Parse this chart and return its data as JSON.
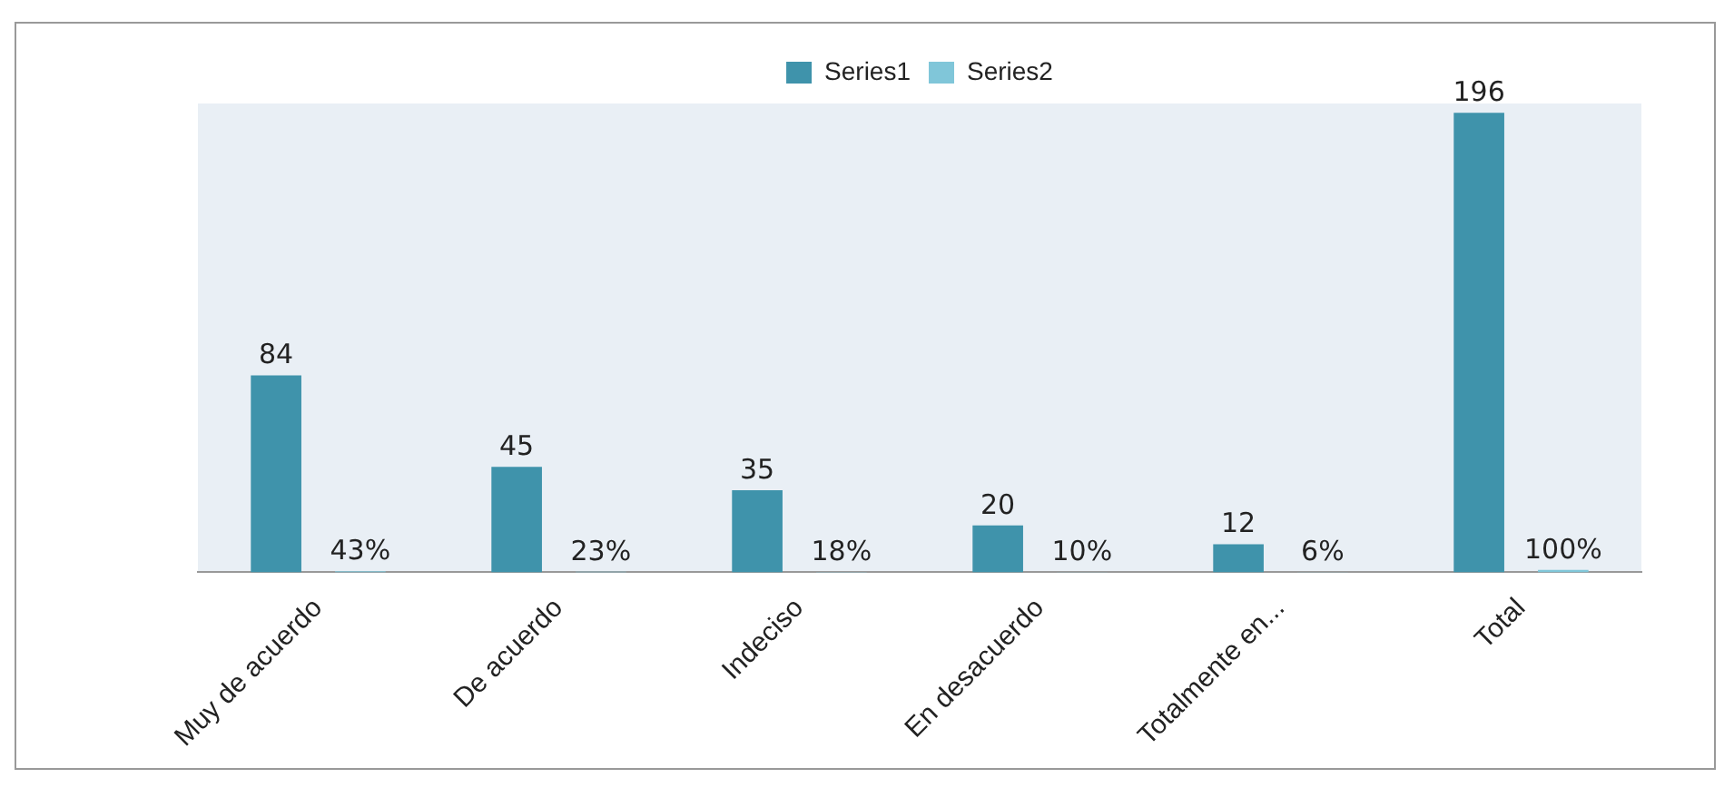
{
  "chart_data": {
    "type": "bar",
    "categories": [
      "Muy de acuerdo",
      "De acuerdo",
      "Indeciso",
      "En desacuerdo",
      "Totalmente en...",
      "Total"
    ],
    "series": [
      {
        "name": "Series1",
        "color": "#3f93ab",
        "values": [
          84,
          45,
          35,
          20,
          12,
          196
        ],
        "value_labels": [
          "84",
          "45",
          "35",
          "20",
          "12",
          "196"
        ]
      },
      {
        "name": "Series2",
        "color": "#80c6d9",
        "values": [
          0.43,
          0.23,
          0.18,
          0.1,
          0.06,
          1
        ],
        "value_labels": [
          "43%",
          "23%",
          "18%",
          "10%",
          "6%",
          "100%"
        ]
      }
    ],
    "legend": "top",
    "grid": false
  }
}
